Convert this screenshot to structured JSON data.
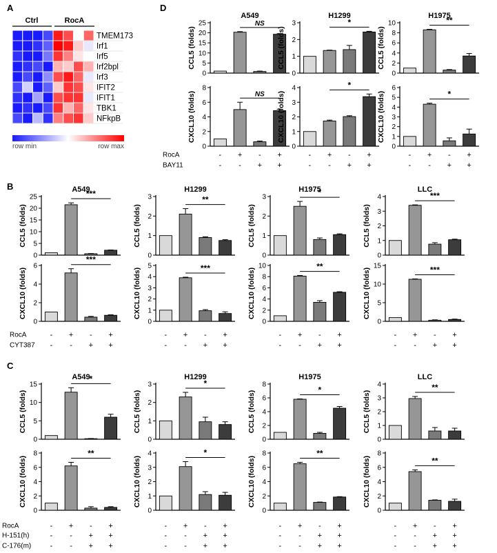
{
  "figure": {
    "panel_labels": [
      "A",
      "B",
      "C",
      "D"
    ],
    "heatmap": {
      "group_labels": [
        "Ctrl",
        "RocA"
      ],
      "genes": [
        "TMEM173",
        "Irf1",
        "Irf5",
        "Irf2bpl",
        "Irf3",
        "IFIT2",
        "IFIT1",
        "TBK1",
        "NFkpB"
      ],
      "values": [
        [
          0.0,
          0.0,
          0.0,
          0.1,
          0.95,
          0.85,
          0.5,
          0.8
        ],
        [
          0.0,
          0.0,
          0.05,
          0.15,
          1.0,
          0.95,
          0.6,
          0.45
        ],
        [
          0.05,
          0.0,
          0.0,
          0.2,
          0.9,
          0.75,
          0.55,
          0.5
        ],
        [
          0.0,
          0.05,
          0.1,
          0.0,
          0.65,
          0.6,
          0.85,
          0.65
        ],
        [
          0.0,
          0.1,
          0.0,
          0.25,
          0.85,
          0.95,
          0.8,
          0.45
        ],
        [
          0.1,
          0.4,
          0.0,
          0.15,
          0.6,
          0.9,
          0.85,
          0.55
        ],
        [
          0.05,
          0.0,
          0.3,
          0.0,
          0.85,
          0.9,
          0.9,
          0.45
        ],
        [
          0.0,
          0.05,
          0.0,
          0.1,
          0.9,
          0.65,
          0.8,
          0.55
        ],
        [
          0.1,
          0.0,
          0.35,
          0.05,
          0.75,
          0.85,
          0.9,
          0.6
        ]
      ],
      "colorbar": {
        "min_label": "row min",
        "max_label": "row max"
      },
      "colors": {
        "low": "#1a1aff",
        "mid": "#ffffff",
        "high": "#ff0000"
      }
    },
    "condition_rows": {
      "B": [
        {
          "label": "RocA",
          "signs": [
            "-",
            "+",
            "-",
            "+"
          ]
        },
        {
          "label": "CYT387",
          "signs": [
            "-",
            "-",
            "+",
            "+"
          ]
        }
      ],
      "C": [
        {
          "label": "RocA",
          "signs": [
            "-",
            "+",
            "-",
            "+"
          ]
        },
        {
          "label": "H-151(h)",
          "signs": [
            "-",
            "-",
            "+",
            "+"
          ]
        },
        {
          "label": "C-176(m)",
          "signs": [
            "-",
            "-",
            "+",
            "+"
          ]
        }
      ],
      "D": [
        {
          "label": "RocA",
          "signs": [
            "-",
            "+",
            "-",
            "+"
          ]
        },
        {
          "label": "BAY11",
          "signs": [
            "-",
            "-",
            "+",
            "+"
          ]
        }
      ]
    },
    "bar_colors": [
      "#d9d9d9",
      "#969696",
      "#7a7a7a",
      "#3c3c3c"
    ]
  },
  "chart_data": [
    {
      "panel": "D",
      "type": "bar",
      "title": "A549",
      "ylabel": "CCL5 (folds)",
      "categories": [
        "1",
        "2",
        "3",
        "4"
      ],
      "values": [
        1,
        20.3,
        0.8,
        19.3
      ],
      "errors": [
        0,
        0.3,
        0.2,
        0.3
      ],
      "ylim": [
        0,
        25
      ],
      "yticks": [
        0,
        5,
        10,
        15,
        20,
        25
      ],
      "significance": "NS"
    },
    {
      "panel": "D",
      "type": "bar",
      "title": "H1299",
      "ylabel": "CCL5 (folds)",
      "categories": [
        "1",
        "2",
        "3",
        "4"
      ],
      "values": [
        1,
        1.35,
        1.4,
        2.45
      ],
      "errors": [
        0,
        0.02,
        0.25,
        0.04
      ],
      "ylim": [
        0,
        3
      ],
      "yticks": [
        0,
        1,
        2,
        3
      ],
      "significance": "*"
    },
    {
      "panel": "D",
      "type": "bar",
      "title": "H1975",
      "ylabel": "CCL5 (folds)",
      "categories": [
        "1",
        "2",
        "3",
        "4"
      ],
      "values": [
        1,
        8.6,
        0.6,
        3.4
      ],
      "errors": [
        0,
        0.1,
        0.1,
        0.5
      ],
      "ylim": [
        0,
        10
      ],
      "yticks": [
        0,
        2,
        4,
        6,
        8,
        10
      ],
      "significance": "**"
    },
    {
      "panel": "D",
      "type": "bar",
      "title": "",
      "ylabel": "CXCL10 (folds)",
      "categories": [
        "1",
        "2",
        "3",
        "4"
      ],
      "values": [
        1,
        5,
        0.6,
        4.85
      ],
      "errors": [
        0,
        1.0,
        0.1,
        0.2
      ],
      "ylim": [
        0,
        8
      ],
      "yticks": [
        0,
        2,
        4,
        6,
        8
      ],
      "significance": "NS"
    },
    {
      "panel": "D",
      "type": "bar",
      "title": "",
      "ylabel": "CXCL10 (folds)",
      "categories": [
        "1",
        "2",
        "3",
        "4"
      ],
      "values": [
        1,
        1.72,
        2.02,
        3.38
      ],
      "errors": [
        0,
        0.06,
        0.06,
        0.18
      ],
      "ylim": [
        0,
        4
      ],
      "yticks": [
        0,
        1,
        2,
        3,
        4
      ],
      "significance": "*"
    },
    {
      "panel": "D",
      "type": "bar",
      "title": "",
      "ylabel": "CXCL10 (folds)",
      "categories": [
        "1",
        "2",
        "3",
        "4"
      ],
      "values": [
        1,
        4.3,
        0.55,
        1.25
      ],
      "errors": [
        0,
        0.1,
        0.3,
        0.5
      ],
      "ylim": [
        0,
        6
      ],
      "yticks": [
        0,
        1,
        2,
        3,
        4,
        5,
        6
      ],
      "significance": "*"
    },
    {
      "panel": "B",
      "type": "bar",
      "title": "A549",
      "ylabel": "CCL5 (folds)",
      "categories": [
        "1",
        "2",
        "3",
        "4"
      ],
      "values": [
        1,
        21.5,
        0.6,
        2.1
      ],
      "errors": [
        0,
        0.8,
        0.1,
        0.1
      ],
      "ylim": [
        0,
        25
      ],
      "yticks": [
        0,
        5,
        10,
        15,
        20,
        25
      ],
      "significance": "***"
    },
    {
      "panel": "B",
      "type": "bar",
      "title": "H1299",
      "ylabel": "CCL5 (folds)",
      "categories": [
        "1",
        "2",
        "3",
        "4"
      ],
      "values": [
        1,
        2.1,
        0.9,
        0.75
      ],
      "errors": [
        0,
        0.28,
        0.04,
        0.04
      ],
      "ylim": [
        0,
        3
      ],
      "yticks": [
        0,
        1,
        2,
        3
      ],
      "significance": "**"
    },
    {
      "panel": "B",
      "type": "bar",
      "title": "H1975",
      "ylabel": "CCL5 (folds)",
      "categories": [
        "1",
        "2",
        "3",
        "4"
      ],
      "values": [
        1,
        2.5,
        0.8,
        1.05
      ],
      "errors": [
        0,
        0.25,
        0.08,
        0.04
      ],
      "ylim": [
        0,
        3
      ],
      "yticks": [
        0,
        1,
        2,
        3
      ],
      "significance": "*"
    },
    {
      "panel": "B",
      "type": "bar",
      "title": "LLC",
      "ylabel": "CCL5 (folds)",
      "categories": [
        "1",
        "2",
        "3",
        "4"
      ],
      "values": [
        1,
        3.4,
        0.75,
        1.05
      ],
      "errors": [
        0,
        0.03,
        0.1,
        0.04
      ],
      "ylim": [
        0,
        4
      ],
      "yticks": [
        0,
        1,
        2,
        3,
        4
      ],
      "significance": "***"
    },
    {
      "panel": "B",
      "type": "bar",
      "title": "",
      "ylabel": "CXCL10 (folds)",
      "categories": [
        "1",
        "2",
        "3",
        "4"
      ],
      "values": [
        1,
        5.2,
        0.45,
        0.65
      ],
      "errors": [
        0,
        0.45,
        0.08,
        0.05
      ],
      "ylim": [
        0,
        6
      ],
      "yticks": [
        0,
        2,
        4,
        6
      ],
      "significance": "***"
    },
    {
      "panel": "B",
      "type": "bar",
      "title": "",
      "ylabel": "CXCL10 (folds)",
      "categories": [
        "1",
        "2",
        "3",
        "4"
      ],
      "values": [
        1,
        3.9,
        0.95,
        0.7
      ],
      "errors": [
        0,
        0.05,
        0.1,
        0.15
      ],
      "ylim": [
        0,
        5
      ],
      "yticks": [
        0,
        1,
        2,
        3,
        4,
        5
      ],
      "significance": "***"
    },
    {
      "panel": "B",
      "type": "bar",
      "title": "",
      "ylabel": "CXCL10 (folds)",
      "categories": [
        "1",
        "2",
        "3",
        "4"
      ],
      "values": [
        1,
        8.1,
        3.4,
        5.2
      ],
      "errors": [
        0,
        0.1,
        0.3,
        0.1
      ],
      "ylim": [
        0,
        10
      ],
      "yticks": [
        0,
        2,
        4,
        6,
        8,
        10
      ],
      "significance": "**"
    },
    {
      "panel": "B",
      "type": "bar",
      "title": "",
      "ylabel": "CXCL10 (folds)",
      "categories": [
        "1",
        "2",
        "3",
        "4"
      ],
      "values": [
        1,
        11.3,
        0.3,
        0.5
      ],
      "errors": [
        0,
        0.1,
        0.1,
        0.1
      ],
      "ylim": [
        0,
        15
      ],
      "yticks": [
        0,
        5,
        10,
        15
      ],
      "significance": "***"
    },
    {
      "panel": "C",
      "type": "bar",
      "title": "A549",
      "ylabel": "CCL5 (folds)",
      "categories": [
        "1",
        "2",
        "3",
        "4"
      ],
      "values": [
        1,
        12.8,
        0.15,
        6
      ],
      "errors": [
        0,
        1.2,
        0.05,
        0.8
      ],
      "ylim": [
        0,
        15
      ],
      "yticks": [
        0,
        5,
        10,
        15
      ],
      "significance": "*"
    },
    {
      "panel": "C",
      "type": "bar",
      "title": "H1299",
      "ylabel": "CCL5 (folds)",
      "categories": [
        "1",
        "2",
        "3",
        "4"
      ],
      "values": [
        1,
        2.3,
        0.95,
        0.8
      ],
      "errors": [
        0,
        0.25,
        0.25,
        0.15
      ],
      "ylim": [
        0,
        3
      ],
      "yticks": [
        0,
        1,
        2,
        3
      ],
      "significance": "*"
    },
    {
      "panel": "C",
      "type": "bar",
      "title": "H1975",
      "ylabel": "CCL5 (folds)",
      "categories": [
        "1",
        "2",
        "3",
        "4"
      ],
      "values": [
        1,
        5.8,
        0.85,
        4.5
      ],
      "errors": [
        0,
        0.05,
        0.15,
        0.25
      ],
      "ylim": [
        0,
        8
      ],
      "yticks": [
        0,
        2,
        4,
        6,
        8
      ],
      "significance": "*"
    },
    {
      "panel": "C",
      "type": "bar",
      "title": "LLC",
      "ylabel": "CCL5 (folds)",
      "categories": [
        "1",
        "2",
        "3",
        "4"
      ],
      "values": [
        1,
        2.95,
        0.6,
        0.6
      ],
      "errors": [
        0,
        0.15,
        0.25,
        0.2
      ],
      "ylim": [
        0,
        4
      ],
      "yticks": [
        0,
        1,
        2,
        3,
        4
      ],
      "significance": "**"
    },
    {
      "panel": "C",
      "type": "bar",
      "title": "",
      "ylabel": "CXCL10 (folds)",
      "categories": [
        "1",
        "2",
        "3",
        "4"
      ],
      "values": [
        1,
        6.2,
        0.3,
        0.4
      ],
      "errors": [
        0,
        0.5,
        0.2,
        0.1
      ],
      "ylim": [
        0,
        8
      ],
      "yticks": [
        0,
        2,
        4,
        6,
        8
      ],
      "significance": "**"
    },
    {
      "panel": "C",
      "type": "bar",
      "title": "",
      "ylabel": "CXCL10 (folds)",
      "categories": [
        "1",
        "2",
        "3",
        "4"
      ],
      "values": [
        1,
        3.05,
        1.1,
        1.05
      ],
      "errors": [
        0,
        0.35,
        0.2,
        0.2
      ],
      "ylim": [
        0,
        4
      ],
      "yticks": [
        0,
        1,
        2,
        3,
        4
      ],
      "significance": "*"
    },
    {
      "panel": "C",
      "type": "bar",
      "title": "",
      "ylabel": "CXCL10 (folds)",
      "categories": [
        "1",
        "2",
        "3",
        "4"
      ],
      "values": [
        1,
        6.5,
        1.1,
        1.85
      ],
      "errors": [
        0,
        0.2,
        0.05,
        0.05
      ],
      "ylim": [
        0,
        8
      ],
      "yticks": [
        0,
        2,
        4,
        6,
        8
      ],
      "significance": "**"
    },
    {
      "panel": "C",
      "type": "bar",
      "title": "",
      "ylabel": "CXCL10 (folds)",
      "categories": [
        "1",
        "2",
        "3",
        "4"
      ],
      "values": [
        1,
        5.4,
        1.4,
        1.25
      ],
      "errors": [
        0,
        0.25,
        0.05,
        0.3
      ],
      "ylim": [
        0,
        8
      ],
      "yticks": [
        0,
        2,
        4,
        6,
        8
      ],
      "significance": "**"
    }
  ]
}
